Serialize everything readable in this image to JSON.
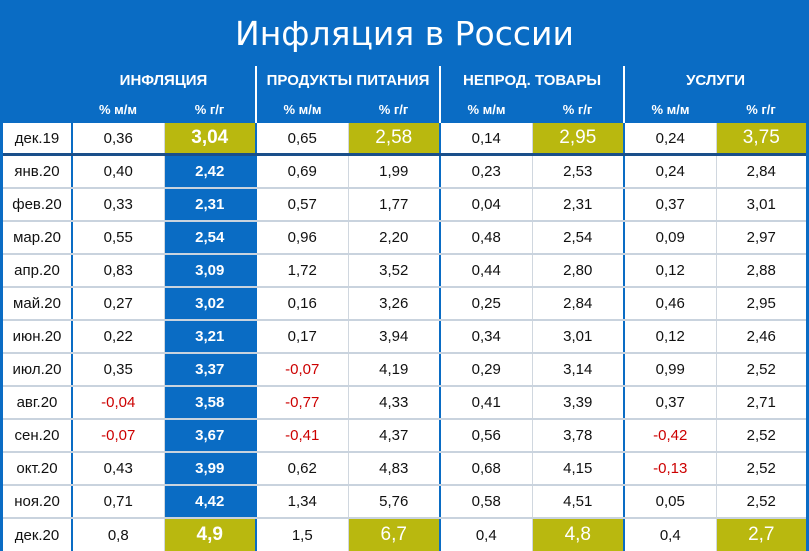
{
  "title": "Инфляция в России",
  "groups": [
    "ИНФЛЯЦИЯ",
    "ПРОДУКТЫ ПИТАНИЯ",
    "НЕПРОД. ТОВАРЫ",
    "УСЛУГИ"
  ],
  "subheaders": [
    "% м/м",
    "% г/г",
    "% м/м",
    "% г/г",
    "% м/м",
    "% г/г",
    "% м/м",
    "% г/г"
  ],
  "colors": {
    "header_bg": "#0a6cc4",
    "highlight": "#b9b80f",
    "negative": "#cc0000"
  },
  "chart_data": {
    "type": "table",
    "title": "Инфляция в России",
    "columns": [
      "Инфляция % м/м",
      "Инфляция % г/г",
      "Продукты питания % м/м",
      "Продукты питания % г/г",
      "Непрод. товары % м/м",
      "Непрод. товары % г/г",
      "Услуги % м/м",
      "Услуги % г/г"
    ],
    "rows": [
      {
        "label": "дек.19",
        "values": [
          "0,36",
          "3,04",
          "0,65",
          "2,58",
          "0,14",
          "2,95",
          "0,24",
          "3,75"
        ]
      },
      {
        "label": "янв.20",
        "values": [
          "0,40",
          "2,42",
          "0,69",
          "1,99",
          "0,23",
          "2,53",
          "0,24",
          "2,84"
        ]
      },
      {
        "label": "фев.20",
        "values": [
          "0,33",
          "2,31",
          "0,57",
          "1,77",
          "0,04",
          "2,31",
          "0,37",
          "3,01"
        ]
      },
      {
        "label": "мар.20",
        "values": [
          "0,55",
          "2,54",
          "0,96",
          "2,20",
          "0,48",
          "2,54",
          "0,09",
          "2,97"
        ]
      },
      {
        "label": "апр.20",
        "values": [
          "0,83",
          "3,09",
          "1,72",
          "3,52",
          "0,44",
          "2,80",
          "0,12",
          "2,88"
        ]
      },
      {
        "label": "май.20",
        "values": [
          "0,27",
          "3,02",
          "0,16",
          "3,26",
          "0,25",
          "2,84",
          "0,46",
          "2,95"
        ]
      },
      {
        "label": "июн.20",
        "values": [
          "0,22",
          "3,21",
          "0,17",
          "3,94",
          "0,34",
          "3,01",
          "0,12",
          "2,46"
        ]
      },
      {
        "label": "июл.20",
        "values": [
          "0,35",
          "3,37",
          "-0,07",
          "4,19",
          "0,29",
          "3,14",
          "0,99",
          "2,52"
        ]
      },
      {
        "label": "авг.20",
        "values": [
          "-0,04",
          "3,58",
          "-0,77",
          "4,33",
          "0,41",
          "3,39",
          "0,37",
          "2,71"
        ]
      },
      {
        "label": "сен.20",
        "values": [
          "-0,07",
          "3,67",
          "-0,41",
          "4,37",
          "0,56",
          "3,78",
          "-0,42",
          "2,52"
        ]
      },
      {
        "label": "окт.20",
        "values": [
          "0,43",
          "3,99",
          "0,62",
          "4,83",
          "0,68",
          "4,15",
          "-0,13",
          "2,52"
        ]
      },
      {
        "label": "ноя.20",
        "values": [
          "0,71",
          "4,42",
          "1,34",
          "5,76",
          "0,58",
          "4,51",
          "0,05",
          "2,52"
        ]
      },
      {
        "label": "дек.20",
        "values": [
          "0,8",
          "4,9",
          "1,5",
          "6,7",
          "0,4",
          "4,8",
          "0,4",
          "2,7"
        ]
      }
    ]
  }
}
